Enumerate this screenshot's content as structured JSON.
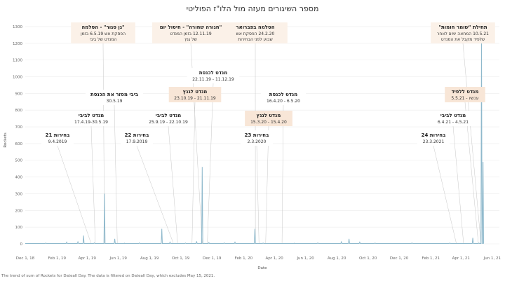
{
  "chart_data": {
    "type": "line",
    "title": "מספר השיגורים מעזה מול הלו\"ז הפוליטי",
    "xlabel": "Date",
    "ylabel": "Rockets",
    "ylim": [
      0,
      1350
    ],
    "yticks": [
      0,
      100,
      200,
      300,
      400,
      500,
      600,
      700,
      800,
      900,
      1000,
      1100,
      1200,
      1300
    ],
    "xlim": [
      "2018-12-01",
      "2021-06-15"
    ],
    "xticks": [
      {
        "date": "2018-12-01",
        "label": "Dec 1, 18"
      },
      {
        "date": "2019-02-01",
        "label": "Feb 1, 19"
      },
      {
        "date": "2019-04-01",
        "label": "Apr 1, 19"
      },
      {
        "date": "2019-06-01",
        "label": "Jun 1, 19"
      },
      {
        "date": "2019-08-01",
        "label": "Aug 1, 19"
      },
      {
        "date": "2019-10-01",
        "label": "Oct 1, 19"
      },
      {
        "date": "2019-12-01",
        "label": "Dec 1, 19"
      },
      {
        "date": "2020-02-01",
        "label": "Feb 1, 20"
      },
      {
        "date": "2020-04-01",
        "label": "Apr 1, 20"
      },
      {
        "date": "2020-06-01",
        "label": "Jun 1, 20"
      },
      {
        "date": "2020-08-01",
        "label": "Aug 1, 20"
      },
      {
        "date": "2020-10-01",
        "label": "Oct 1, 20"
      },
      {
        "date": "2020-12-01",
        "label": "Dec 1, 20"
      },
      {
        "date": "2021-02-01",
        "label": "Feb 1, 21"
      },
      {
        "date": "2021-04-01",
        "label": "Apr 1, 21"
      },
      {
        "date": "2021-06-01",
        "label": "Jun 1, 21"
      }
    ],
    "series": [
      {
        "color": "#8fb9cc",
        "points": [
          [
            "2019-01-10",
            5
          ],
          [
            "2019-02-20",
            10
          ],
          [
            "2019-03-14",
            12
          ],
          [
            "2019-03-25",
            50
          ],
          [
            "2019-04-15",
            6
          ],
          [
            "2019-05-05",
            300
          ],
          [
            "2019-05-25",
            30
          ],
          [
            "2019-06-13",
            4
          ],
          [
            "2019-07-12",
            6
          ],
          [
            "2019-08-25",
            90
          ],
          [
            "2019-09-10",
            10
          ],
          [
            "2019-10-10",
            5
          ],
          [
            "2019-11-01",
            15
          ],
          [
            "2019-11-12",
            460
          ],
          [
            "2019-11-25",
            8
          ],
          [
            "2019-12-25",
            6
          ],
          [
            "2020-01-15",
            10
          ],
          [
            "2020-02-23",
            90
          ],
          [
            "2020-03-10",
            5
          ],
          [
            "2020-05-10",
            4
          ],
          [
            "2020-06-25",
            6
          ],
          [
            "2020-08-10",
            12
          ],
          [
            "2020-08-25",
            30
          ],
          [
            "2020-09-15",
            10
          ],
          [
            "2020-10-15",
            5
          ],
          [
            "2020-12-26",
            6
          ],
          [
            "2021-03-10",
            5
          ],
          [
            "2021-04-24",
            36
          ],
          [
            "2021-05-06",
            5
          ],
          [
            "2021-05-11",
            1270
          ],
          [
            "2021-05-14",
            490
          ]
        ]
      }
    ],
    "annotations": [
      {
        "title": "בחירות 21",
        "sub": "9.4.2019",
        "date": "2019-04-09",
        "fill": "#ffffff"
      },
      {
        "title": "מנדט לביבי",
        "sub": "17.4.19-30.5.19",
        "date": "2019-04-17",
        "fill": "#ffffff"
      },
      {
        "title": "\"גן סגור\" - הסלמה",
        "sub": "הפסקת אש 6.5.19 בזמן המנדט של ביבי",
        "date": "2019-05-05",
        "fill": "#fbf1e8"
      },
      {
        "title": "ביבי מפזר את הכנסת",
        "sub": "30.5.19",
        "date": "2019-05-30",
        "fill": "#ffffff"
      },
      {
        "title": "בחירות 22",
        "sub": "17.9.2019",
        "date": "2019-09-17",
        "fill": "#ffffff"
      },
      {
        "title": "מנדט לביבי",
        "sub": "25.9.19 - 22.10.19",
        "date": "2019-09-25",
        "fill": "#ffffff"
      },
      {
        "title": "\"חגורה שחורה\" - חיסול יום",
        "sub": "12.11.19 בזמן המנדט של גנץ",
        "date": "2019-11-12",
        "fill": "#fbf1e8"
      },
      {
        "title": "מנדט לגנץ",
        "sub": "23.10.19 - 21.11.19",
        "date": "2019-10-23",
        "fill": "#f8e6d7"
      },
      {
        "title": "מנדט לכנסת",
        "sub": "22.11.19 - 11.12.19",
        "date": "2019-11-22",
        "fill": "#ffffff"
      },
      {
        "title": "הסלמה בפברואר",
        "sub": "24.2.20 הפסקת אש שבוע לפני הבחירות",
        "date": "2020-02-24",
        "fill": "#fbf1e8"
      },
      {
        "title": "בחירות 23",
        "sub": "2.3.2020",
        "date": "2020-03-02",
        "fill": "#ffffff"
      },
      {
        "title": "מנדט לגנץ",
        "sub": "15.3.20 - 15.4.20",
        "date": "2020-03-15",
        "fill": "#f8e6d7"
      },
      {
        "title": "מנדט לכנסת",
        "sub": "16.4.20 - 6.5.20",
        "date": "2020-04-16",
        "fill": "#ffffff"
      },
      {
        "title": "בחירות 24",
        "sub": "23.3.2021",
        "date": "2021-03-23",
        "fill": "#ffffff"
      },
      {
        "title": "מנדט לביבי",
        "sub": "6.4.21 - 4.5.21",
        "date": "2021-04-06",
        "fill": "#ffffff"
      },
      {
        "title": "מנדט ללפיד",
        "sub": "5.5.21 - עכשיו",
        "date": "2021-05-05",
        "fill": "#f8e6d7"
      },
      {
        "title": "תחילת \"שומר חומות\"",
        "sub": "10.5.21 המחאה ימים לאחר שלפיד מקבל את המנדט",
        "date": "2021-05-10",
        "fill": "#fbf1e8"
      }
    ]
  },
  "caption": "The trend of sum of Rockets for Dateall Day. The data is filtered on Dateall Day, which excludes May 15, 2021."
}
